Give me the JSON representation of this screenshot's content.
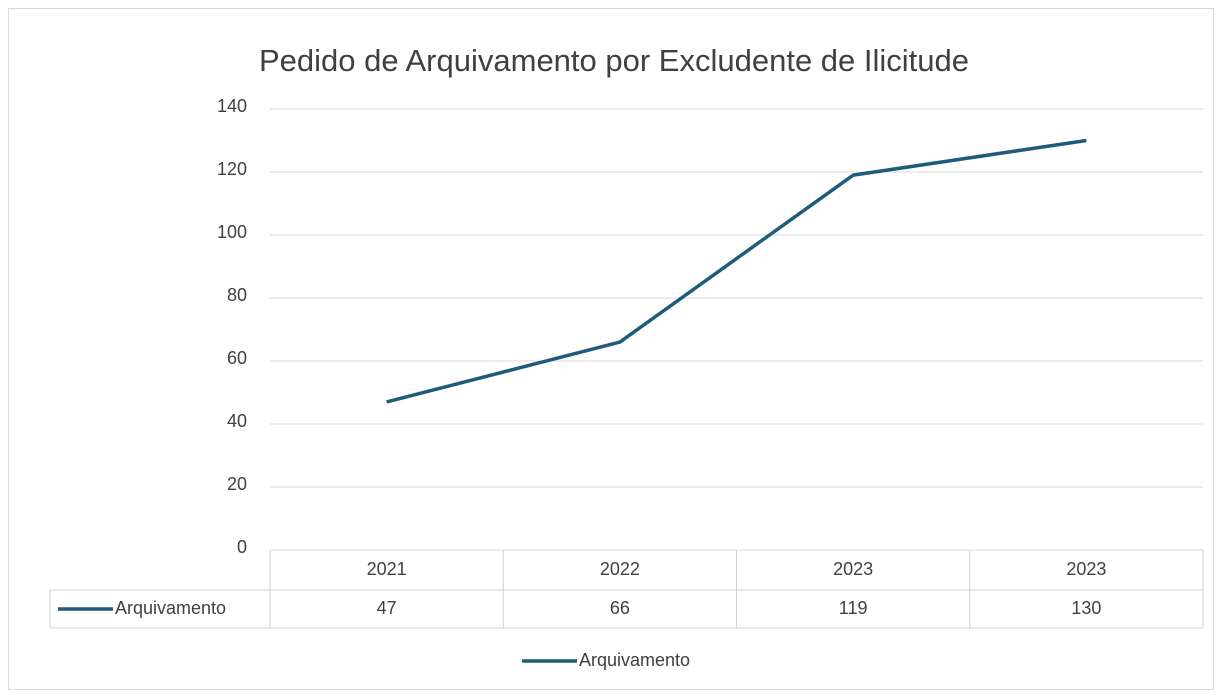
{
  "chart_data": {
    "type": "line",
    "title": "Pedido de Arquivamento por Excludente de Ilicitude",
    "categories": [
      "2021",
      "2022",
      "2023",
      "2023"
    ],
    "series": [
      {
        "name": "Arquivamento",
        "color": "#1f5b7a",
        "values": [
          47,
          66,
          119,
          130
        ]
      }
    ],
    "ylim": [
      0,
      140
    ],
    "yticks": [
      0,
      20,
      40,
      60,
      80,
      100,
      120,
      140
    ],
    "grid": true,
    "legend": "bottom",
    "data_table": true
  }
}
